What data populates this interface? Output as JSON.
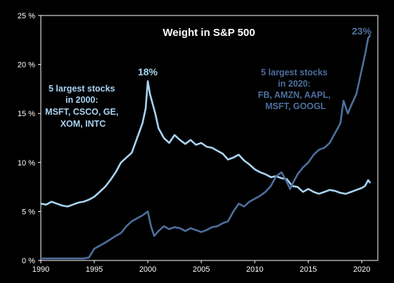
{
  "chart_data": {
    "type": "line",
    "title": "Weight in S&P 500",
    "xlabel": "",
    "ylabel": "",
    "xlim": [
      1990,
      2021.5
    ],
    "ylim": [
      0,
      25
    ],
    "x_ticks": [
      1990,
      1995,
      2000,
      2005,
      2010,
      2015,
      2020
    ],
    "x_tick_labels": [
      "1990",
      "1995",
      "2000",
      "2005",
      "2010",
      "2015",
      "2020"
    ],
    "y_ticks": [
      0,
      5,
      10,
      15,
      20,
      25
    ],
    "y_tick_labels": [
      "0 %",
      "5 %",
      "10 %",
      "15 %",
      "20 %",
      "25 %"
    ],
    "grid": false,
    "colors": {
      "background": "#000000",
      "frame": "#ffffff",
      "series_2000": "#a9d4f2",
      "series_2020": "#4e6f9d"
    },
    "series": [
      {
        "id": "s2000",
        "x": [
          1990.0,
          1990.5,
          1991.0,
          1991.5,
          1992.0,
          1992.5,
          1993.0,
          1993.5,
          1994.0,
          1994.5,
          1995.0,
          1995.5,
          1996.0,
          1996.5,
          1997.0,
          1997.5,
          1998.0,
          1998.5,
          1999.0,
          1999.5,
          1999.8,
          2000.0,
          2000.2,
          2000.4,
          2000.7,
          2001.0,
          2001.5,
          2002.0,
          2002.5,
          2003.0,
          2003.5,
          2004.0,
          2004.5,
          2005.0,
          2005.5,
          2006.0,
          2006.5,
          2007.0,
          2007.5,
          2008.0,
          2008.5,
          2009.0,
          2009.5,
          2010.0,
          2010.5,
          2011.0,
          2011.5,
          2012.0,
          2012.5,
          2013.0,
          2013.5,
          2014.0,
          2014.5,
          2015.0,
          2015.5,
          2016.0,
          2016.5,
          2017.0,
          2017.5,
          2018.0,
          2018.5,
          2019.0,
          2019.5,
          2020.0,
          2020.3,
          2020.6,
          2020.8
        ],
        "values": [
          5.8,
          5.7,
          6.0,
          5.8,
          5.6,
          5.5,
          5.7,
          5.9,
          6.0,
          6.2,
          6.5,
          7.0,
          7.5,
          8.2,
          9.0,
          10.0,
          10.5,
          11.0,
          12.5,
          14.0,
          15.5,
          18.3,
          17.0,
          16.2,
          15.0,
          13.5,
          12.5,
          12.0,
          12.8,
          12.3,
          11.9,
          12.3,
          11.8,
          12.0,
          11.6,
          11.5,
          11.2,
          10.9,
          10.3,
          10.5,
          10.8,
          10.2,
          9.8,
          9.3,
          9.0,
          8.8,
          8.5,
          8.6,
          8.4,
          8.3,
          7.6,
          7.5,
          7.0,
          7.3,
          7.0,
          6.8,
          7.0,
          7.2,
          7.1,
          6.9,
          6.8,
          7.0,
          7.2,
          7.4,
          7.6,
          8.2,
          7.9
        ]
      },
      {
        "id": "s2020",
        "x": [
          1990.0,
          1991.0,
          1992.0,
          1993.0,
          1994.0,
          1994.5,
          1995.0,
          1996.0,
          1997.0,
          1997.5,
          1998.0,
          1998.5,
          1999.0,
          1999.5,
          2000.0,
          2000.3,
          2000.6,
          2001.0,
          2001.5,
          2002.0,
          2002.5,
          2003.0,
          2003.5,
          2004.0,
          2004.5,
          2005.0,
          2005.5,
          2006.0,
          2006.5,
          2007.0,
          2007.5,
          2008.0,
          2008.5,
          2009.0,
          2009.5,
          2010.0,
          2010.5,
          2011.0,
          2011.5,
          2012.0,
          2012.5,
          2013.0,
          2013.3,
          2013.7,
          2014.0,
          2014.5,
          2015.0,
          2015.5,
          2016.0,
          2016.5,
          2017.0,
          2017.5,
          2018.0,
          2018.3,
          2018.7,
          2019.0,
          2019.5,
          2020.0,
          2020.3,
          2020.6,
          2020.8
        ],
        "values": [
          0.2,
          0.2,
          0.2,
          0.2,
          0.2,
          0.3,
          1.2,
          1.8,
          2.5,
          2.8,
          3.5,
          4.0,
          4.3,
          4.6,
          5.0,
          3.5,
          2.5,
          3.0,
          3.5,
          3.2,
          3.4,
          3.3,
          3.0,
          3.3,
          3.1,
          2.9,
          3.1,
          3.4,
          3.5,
          3.8,
          4.0,
          5.0,
          5.8,
          5.5,
          6.0,
          6.3,
          6.6,
          7.0,
          7.6,
          8.6,
          9.0,
          8.0,
          7.3,
          8.2,
          8.8,
          9.5,
          10.0,
          10.8,
          11.3,
          11.5,
          12.0,
          13.0,
          14.0,
          16.3,
          15.0,
          15.8,
          17.0,
          19.5,
          21.0,
          22.7,
          23.0
        ]
      }
    ],
    "annotations": [
      {
        "id": "peak2000",
        "text": "18%"
      },
      {
        "id": "peak2020",
        "text": "23%"
      },
      {
        "id": "label2000",
        "lines": [
          "5 largest stocks",
          "in 2000:",
          "MSFT, CSCO, GE,",
          "XOM, INTC"
        ]
      },
      {
        "id": "label2020",
        "lines": [
          "5 largest stocks",
          "in 2020:",
          "FB, AMZN, AAPL,",
          "MSFT, GOOGL"
        ]
      }
    ]
  }
}
